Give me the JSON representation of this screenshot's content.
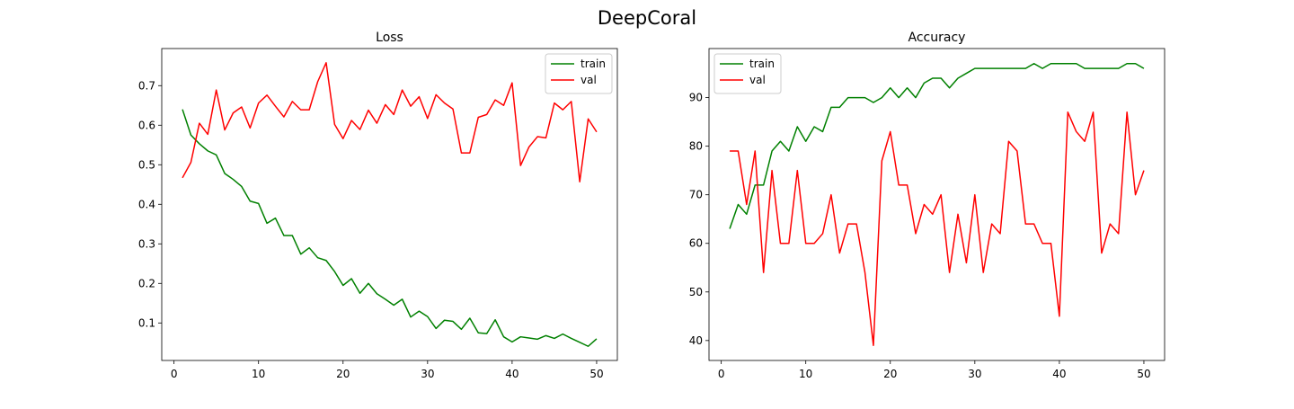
{
  "figure": {
    "title": "DeepCoral"
  },
  "colors": {
    "train": "#008000",
    "val": "#ff0000",
    "axes": "#000000",
    "background": "#ffffff",
    "legend_border": "#cccccc"
  },
  "chart_data": [
    {
      "id": "loss",
      "type": "line",
      "title": "Loss",
      "xlabel": "",
      "ylabel": "",
      "xlim": [
        -1.45,
        52.45
      ],
      "ylim": [
        0.0052,
        0.7938
      ],
      "xticks": [
        0,
        10,
        20,
        30,
        40,
        50
      ],
      "yticks": [
        0.1,
        0.2,
        0.3,
        0.4,
        0.5,
        0.6,
        0.7
      ],
      "grid": false,
      "legend": "upper right",
      "x": [
        1,
        2,
        3,
        4,
        5,
        6,
        7,
        8,
        9,
        10,
        11,
        12,
        13,
        14,
        15,
        16,
        17,
        18,
        19,
        20,
        21,
        22,
        23,
        24,
        25,
        26,
        27,
        28,
        29,
        30,
        31,
        32,
        33,
        34,
        35,
        36,
        37,
        38,
        39,
        40,
        41,
        42,
        43,
        44,
        45,
        46,
        47,
        48,
        49,
        50
      ],
      "series": [
        {
          "name": "train",
          "color": "#008000",
          "values": [
            0.64,
            0.575,
            0.553,
            0.535,
            0.525,
            0.478,
            0.463,
            0.445,
            0.408,
            0.402,
            0.352,
            0.365,
            0.321,
            0.321,
            0.274,
            0.29,
            0.265,
            0.258,
            0.23,
            0.195,
            0.212,
            0.175,
            0.2,
            0.174,
            0.16,
            0.145,
            0.16,
            0.115,
            0.13,
            0.116,
            0.086,
            0.107,
            0.104,
            0.084,
            0.112,
            0.075,
            0.073,
            0.108,
            0.065,
            0.052,
            0.065,
            0.062,
            0.059,
            0.068,
            0.061,
            0.072,
            0.061,
            0.051,
            0.041,
            0.06
          ]
        },
        {
          "name": "val",
          "color": "#ff0000",
          "values": [
            0.467,
            0.506,
            0.605,
            0.577,
            0.689,
            0.588,
            0.631,
            0.646,
            0.593,
            0.656,
            0.676,
            0.648,
            0.621,
            0.66,
            0.639,
            0.639,
            0.71,
            0.758,
            0.602,
            0.566,
            0.612,
            0.589,
            0.638,
            0.605,
            0.652,
            0.627,
            0.689,
            0.648,
            0.672,
            0.617,
            0.677,
            0.656,
            0.641,
            0.53,
            0.53,
            0.62,
            0.627,
            0.664,
            0.65,
            0.707,
            0.498,
            0.545,
            0.571,
            0.568,
            0.656,
            0.639,
            0.66,
            0.457,
            0.616,
            0.583
          ]
        }
      ]
    },
    {
      "id": "accuracy",
      "type": "line",
      "title": "Accuracy",
      "xlabel": "",
      "ylabel": "",
      "xlim": [
        -1.45,
        52.45
      ],
      "ylim": [
        35.9,
        100.1
      ],
      "xticks": [
        0,
        10,
        20,
        30,
        40,
        50
      ],
      "yticks": [
        40,
        50,
        60,
        70,
        80,
        90
      ],
      "grid": false,
      "legend": "upper left",
      "x": [
        1,
        2,
        3,
        4,
        5,
        6,
        7,
        8,
        9,
        10,
        11,
        12,
        13,
        14,
        15,
        16,
        17,
        18,
        19,
        20,
        21,
        22,
        23,
        24,
        25,
        26,
        27,
        28,
        29,
        30,
        31,
        32,
        33,
        34,
        35,
        36,
        37,
        38,
        39,
        40,
        41,
        42,
        43,
        44,
        45,
        46,
        47,
        48,
        49,
        50
      ],
      "series": [
        {
          "name": "train",
          "color": "#008000",
          "values": [
            63,
            68,
            66,
            72,
            72,
            79,
            81,
            79,
            84,
            81,
            84,
            83,
            88,
            88,
            90,
            90,
            90,
            89,
            90,
            92,
            90,
            92,
            90,
            93,
            94,
            94,
            92,
            94,
            95,
            96,
            96,
            96,
            96,
            96,
            96,
            96,
            97,
            96,
            97,
            97,
            97,
            97,
            96,
            96,
            96,
            96,
            96,
            97,
            97,
            96
          ]
        },
        {
          "name": "val",
          "color": "#ff0000",
          "values": [
            79,
            79,
            68,
            79,
            54,
            75,
            60,
            60,
            75,
            60,
            60,
            62,
            70,
            58,
            64,
            64,
            54,
            39,
            77,
            83,
            72,
            72,
            62,
            68,
            66,
            70,
            54,
            66,
            56,
            70,
            54,
            64,
            62,
            81,
            79,
            64,
            64,
            60,
            60,
            45,
            87,
            83,
            81,
            87,
            58,
            64,
            62,
            87,
            70,
            75
          ]
        }
      ]
    }
  ]
}
